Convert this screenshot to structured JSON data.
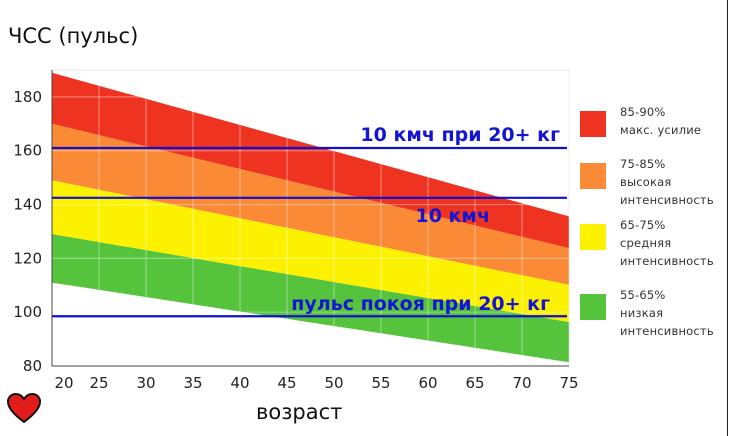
{
  "chart_data": {
    "type": "area",
    "title": "ЧСС (пульс)",
    "xlabel": "возраст",
    "ylabel": "",
    "xlim": [
      20,
      75
    ],
    "ylim": [
      80,
      190
    ],
    "x_ticks": [
      20,
      25,
      30,
      35,
      40,
      45,
      50,
      55,
      60,
      65,
      70,
      75
    ],
    "y_ticks": [
      80,
      100,
      120,
      140,
      160,
      180
    ],
    "grid": true,
    "legend_position": "right",
    "bands": [
      {
        "name": "85-90% макс. усилие",
        "lines": [
          "85-90%",
          "макс. усилие"
        ],
        "color": "#ee3321",
        "lower": [
          170,
          123.8
        ],
        "upper": [
          189,
          135.6
        ]
      },
      {
        "name": "75-85% высокая интенсивность",
        "lines": [
          "75-85%",
          "высокая",
          "интенсивность"
        ],
        "color": "#fb8a36",
        "lower": [
          149,
          110.2
        ],
        "upper": [
          170,
          123.8
        ]
      },
      {
        "name": "65-75% средняя интенсивность",
        "lines": [
          "65-75%",
          "средняя",
          "интенсивность"
        ],
        "color": "#fbf100",
        "lower": [
          129,
          96.3
        ],
        "upper": [
          149,
          110.2
        ]
      },
      {
        "name": "55-65% низкая интенсивность",
        "lines": [
          "55-65%",
          "низкая",
          "интенсивность"
        ],
        "color": "#55c33c",
        "lower": [
          111,
          81.4
        ],
        "upper": [
          129,
          96.3
        ]
      }
    ],
    "reference_lines": [
      {
        "label": "10 кмч при 20+ кг",
        "y": 161,
        "color": "#1111cc"
      },
      {
        "label": "10 кмч",
        "y": 142.5,
        "color": "#1111cc"
      },
      {
        "label": "пульс покоя при 20+ кг",
        "y": 98.5,
        "color": "#1111cc"
      }
    ],
    "annotation_color": "#1414d4"
  }
}
